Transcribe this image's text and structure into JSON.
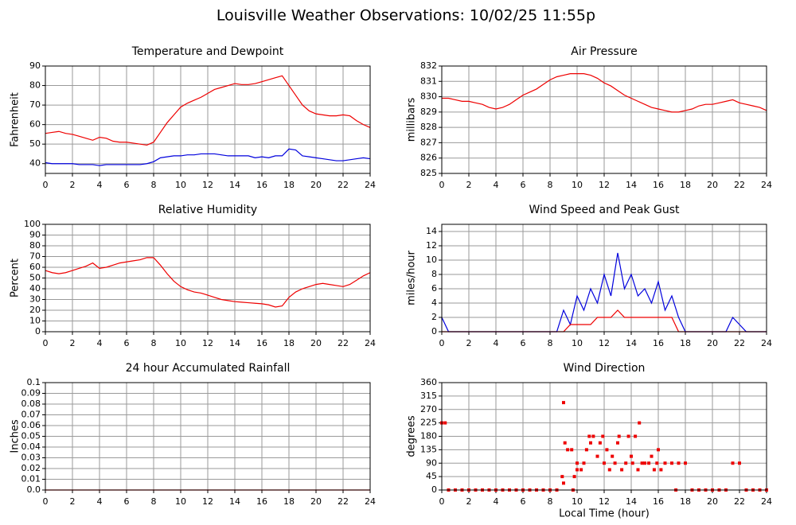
{
  "title": "Louisville Weather Observations: 10/02/25 11:55p",
  "chart_data": [
    {
      "type": "line",
      "title": "Temperature and Dewpoint",
      "y_label": "Fahrenheit",
      "x": [
        0,
        0.5,
        1,
        1.5,
        2,
        2.5,
        3,
        3.5,
        4,
        4.5,
        5,
        5.5,
        6,
        6.5,
        7,
        7.5,
        8,
        8.5,
        9,
        9.5,
        10,
        10.5,
        11,
        11.5,
        12,
        12.5,
        13,
        13.5,
        14,
        14.5,
        15,
        15.5,
        16,
        16.5,
        17,
        17.5,
        18,
        18.5,
        19,
        19.5,
        20,
        20.5,
        21,
        21.5,
        22,
        22.5,
        23,
        23.5,
        24
      ],
      "xlim": [
        0,
        24
      ],
      "xticks": [
        0,
        2,
        4,
        6,
        8,
        10,
        12,
        14,
        16,
        18,
        20,
        22,
        24
      ],
      "ylim": [
        35,
        90
      ],
      "yticks": [
        40,
        50,
        60,
        70,
        80,
        90
      ],
      "grid": true,
      "series": [
        {
          "color": "#ee0000",
          "values": [
            55.5,
            56,
            56.5,
            55.5,
            55,
            54,
            53,
            52,
            53.5,
            53,
            51.5,
            51,
            51,
            50.5,
            50,
            49.5,
            51,
            56,
            61,
            65,
            69,
            71,
            72.5,
            74,
            76,
            78,
            79,
            80,
            81,
            80.5,
            80.5,
            81,
            82,
            83,
            84,
            85,
            80,
            75,
            70,
            67,
            65.5,
            65,
            64.5,
            64.5,
            65,
            64.5,
            62,
            60,
            58.5
          ]
        },
        {
          "color": "#0000dd",
          "values": [
            40.5,
            40,
            40,
            40,
            40,
            39.5,
            39.5,
            39.5,
            39,
            39.5,
            39.5,
            39.5,
            39.5,
            39.5,
            39.5,
            40,
            41,
            43,
            43.5,
            44,
            44,
            44.5,
            44.5,
            45,
            45,
            45,
            44.5,
            44,
            44,
            44,
            44,
            43,
            43.5,
            43,
            44,
            44,
            47.5,
            47,
            44,
            43.5,
            43,
            42.5,
            42,
            41.5,
            41.5,
            42,
            42.5,
            43,
            42.5
          ]
        }
      ]
    },
    {
      "type": "line",
      "title": "Air Pressure",
      "y_label": "millibars",
      "x": [
        0,
        0.5,
        1,
        1.5,
        2,
        2.5,
        3,
        3.5,
        4,
        4.5,
        5,
        5.5,
        6,
        6.5,
        7,
        7.5,
        8,
        8.5,
        9,
        9.5,
        10,
        10.5,
        11,
        11.5,
        12,
        12.5,
        13,
        13.5,
        14,
        14.5,
        15,
        15.5,
        16,
        16.5,
        17,
        17.5,
        18,
        18.5,
        19,
        19.5,
        20,
        20.5,
        21,
        21.5,
        22,
        22.5,
        23,
        23.5,
        24
      ],
      "xlim": [
        0,
        24
      ],
      "xticks": [
        0,
        2,
        4,
        6,
        8,
        10,
        12,
        14,
        16,
        18,
        20,
        22,
        24
      ],
      "ylim": [
        825,
        832
      ],
      "yticks": [
        825,
        826,
        827,
        828,
        829,
        830,
        831,
        832
      ],
      "grid": true,
      "series": [
        {
          "color": "#ee0000",
          "values": [
            829.9,
            829.9,
            829.8,
            829.7,
            829.7,
            829.6,
            829.5,
            829.3,
            829.2,
            829.3,
            829.5,
            829.8,
            830.1,
            830.3,
            830.5,
            830.8,
            831.1,
            831.3,
            831.4,
            831.5,
            831.5,
            831.5,
            831.4,
            831.2,
            830.9,
            830.7,
            830.4,
            830.1,
            829.9,
            829.7,
            829.5,
            829.3,
            829.2,
            829.1,
            829.0,
            829.0,
            829.1,
            829.2,
            829.4,
            829.5,
            829.5,
            829.6,
            829.7,
            829.8,
            829.6,
            829.5,
            829.4,
            829.3,
            829.1
          ]
        }
      ]
    },
    {
      "type": "line",
      "title": "Relative Humidity",
      "y_label": "Percent",
      "x": [
        0,
        0.5,
        1,
        1.5,
        2,
        2.5,
        3,
        3.5,
        4,
        4.5,
        5,
        5.5,
        6,
        6.5,
        7,
        7.5,
        8,
        8.5,
        9,
        9.5,
        10,
        10.5,
        11,
        11.5,
        12,
        12.5,
        13,
        13.5,
        14,
        14.5,
        15,
        15.5,
        16,
        16.5,
        17,
        17.5,
        18,
        18.5,
        19,
        19.5,
        20,
        20.5,
        21,
        21.5,
        22,
        22.5,
        23,
        23.5,
        24
      ],
      "xlim": [
        0,
        24
      ],
      "xticks": [
        0,
        2,
        4,
        6,
        8,
        10,
        12,
        14,
        16,
        18,
        20,
        22,
        24
      ],
      "ylim": [
        0,
        100
      ],
      "yticks": [
        0,
        10,
        20,
        30,
        40,
        50,
        60,
        70,
        80,
        90,
        100
      ],
      "grid": true,
      "series": [
        {
          "color": "#ee0000",
          "values": [
            57,
            55,
            54,
            55,
            57,
            59,
            61,
            64,
            59,
            60,
            62,
            64,
            65,
            66,
            67,
            69,
            69,
            62,
            54,
            47,
            42,
            39,
            37,
            36,
            34,
            32,
            30,
            29,
            28,
            27.5,
            27,
            26.5,
            26,
            25,
            23,
            24,
            32,
            37,
            40,
            42,
            44,
            45,
            44,
            43,
            42,
            44,
            48,
            52,
            55
          ]
        }
      ]
    },
    {
      "type": "line",
      "title": "Wind Speed and Peak Gust",
      "y_label": "miles/hour",
      "x": [
        0,
        0.5,
        1,
        1.5,
        2,
        2.5,
        3,
        3.5,
        4,
        4.5,
        5,
        5.5,
        6,
        6.5,
        7,
        7.5,
        8,
        8.5,
        9,
        9.5,
        10,
        10.5,
        11,
        11.5,
        12,
        12.5,
        13,
        13.5,
        14,
        14.5,
        15,
        15.5,
        16,
        16.5,
        17,
        17.5,
        18,
        18.5,
        19,
        19.5,
        20,
        20.5,
        21,
        21.5,
        22,
        22.5,
        23,
        23.5,
        24
      ],
      "xlim": [
        0,
        24
      ],
      "xticks": [
        0,
        2,
        4,
        6,
        8,
        10,
        12,
        14,
        16,
        18,
        20,
        22,
        24
      ],
      "ylim": [
        0,
        15
      ],
      "yticks": [
        0,
        2,
        4,
        6,
        8,
        10,
        12,
        14
      ],
      "grid": true,
      "series": [
        {
          "color": "#0000dd",
          "values": [
            2,
            0,
            0,
            0,
            0,
            0,
            0,
            0,
            0,
            0,
            0,
            0,
            0,
            0,
            0,
            0,
            0,
            0,
            3,
            1,
            5,
            3,
            6,
            4,
            8,
            5,
            11,
            6,
            8,
            5,
            6,
            4,
            7,
            3,
            5,
            2,
            0,
            0,
            0,
            0,
            0,
            0,
            0,
            2,
            1,
            0,
            0,
            0,
            0
          ]
        },
        {
          "color": "#ee0000",
          "values": [
            0,
            0,
            0,
            0,
            0,
            0,
            0,
            0,
            0,
            0,
            0,
            0,
            0,
            0,
            0,
            0,
            0,
            0,
            0,
            1,
            1,
            1,
            1,
            2,
            2,
            2,
            3,
            2,
            2,
            2,
            2,
            2,
            2,
            2,
            2,
            0,
            0,
            0,
            0,
            0,
            0,
            0,
            0,
            0,
            0,
            0,
            0,
            0,
            0
          ]
        }
      ]
    },
    {
      "type": "line",
      "title": "24 hour Accumulated Rainfall",
      "y_label": "Inches",
      "x": [
        0,
        24
      ],
      "xlim": [
        0,
        24
      ],
      "xticks": [
        0,
        2,
        4,
        6,
        8,
        10,
        12,
        14,
        16,
        18,
        20,
        22,
        24
      ],
      "ylim": [
        0,
        0.1
      ],
      "yticks": [
        {
          "value": 0,
          "label": "0.0"
        },
        0.01,
        0.02,
        0.03,
        0.04,
        0.05,
        0.06,
        0.07,
        0.08,
        0.09,
        0.1
      ],
      "grid": true,
      "series": [
        {
          "color": "#ee0000",
          "values": [
            0,
            0
          ]
        }
      ]
    },
    {
      "type": "scatter",
      "title": "Wind Direction",
      "y_label": "degrees",
      "x_label": "Local Time (hour)",
      "x": [
        0,
        0.25,
        0.5,
        1,
        1.5,
        2,
        2.5,
        3,
        3.5,
        4,
        4.5,
        5,
        5.5,
        6,
        6.5,
        7,
        7.5,
        8,
        8.5,
        8.9,
        9,
        9,
        9.1,
        9.3,
        9.6,
        9.7,
        9.8,
        10,
        10,
        10.3,
        10.5,
        10.7,
        10.9,
        11,
        11.2,
        11.5,
        11.7,
        11.9,
        12,
        12.2,
        12.4,
        12.6,
        12.8,
        13,
        13.1,
        13.3,
        13.6,
        13.8,
        14,
        14.1,
        14.3,
        14.5,
        14.6,
        14.8,
        15,
        15.3,
        15.5,
        15.7,
        15.9,
        16,
        16.2,
        16.5,
        17,
        17.3,
        17.5,
        18,
        18.5,
        19,
        19.5,
        20,
        20.5,
        21,
        21.5,
        22,
        22.5,
        23,
        23.5,
        24
      ],
      "values": [
        225,
        225,
        0,
        0,
        0,
        0,
        0,
        0,
        0,
        0,
        0,
        0,
        0,
        0,
        0,
        0,
        0,
        0,
        0,
        45,
        293,
        23,
        158,
        135,
        135,
        0,
        45,
        68,
        90,
        68,
        90,
        135,
        180,
        158,
        180,
        113,
        158,
        180,
        90,
        135,
        68,
        113,
        90,
        158,
        180,
        68,
        90,
        180,
        113,
        90,
        180,
        68,
        225,
        90,
        90,
        90,
        113,
        68,
        90,
        135,
        68,
        90,
        90,
        0,
        90,
        90,
        0,
        0,
        0,
        0,
        0,
        0,
        90,
        90,
        0,
        0,
        0,
        0
      ],
      "color": "#ee0000",
      "xlim": [
        0,
        24
      ],
      "xticks": [
        0,
        2,
        4,
        6,
        8,
        10,
        12,
        14,
        16,
        18,
        20,
        22,
        24
      ],
      "ylim": [
        0,
        360
      ],
      "yticks": [
        0,
        45,
        90,
        135,
        180,
        225,
        270,
        315,
        360
      ],
      "grid": true
    }
  ]
}
